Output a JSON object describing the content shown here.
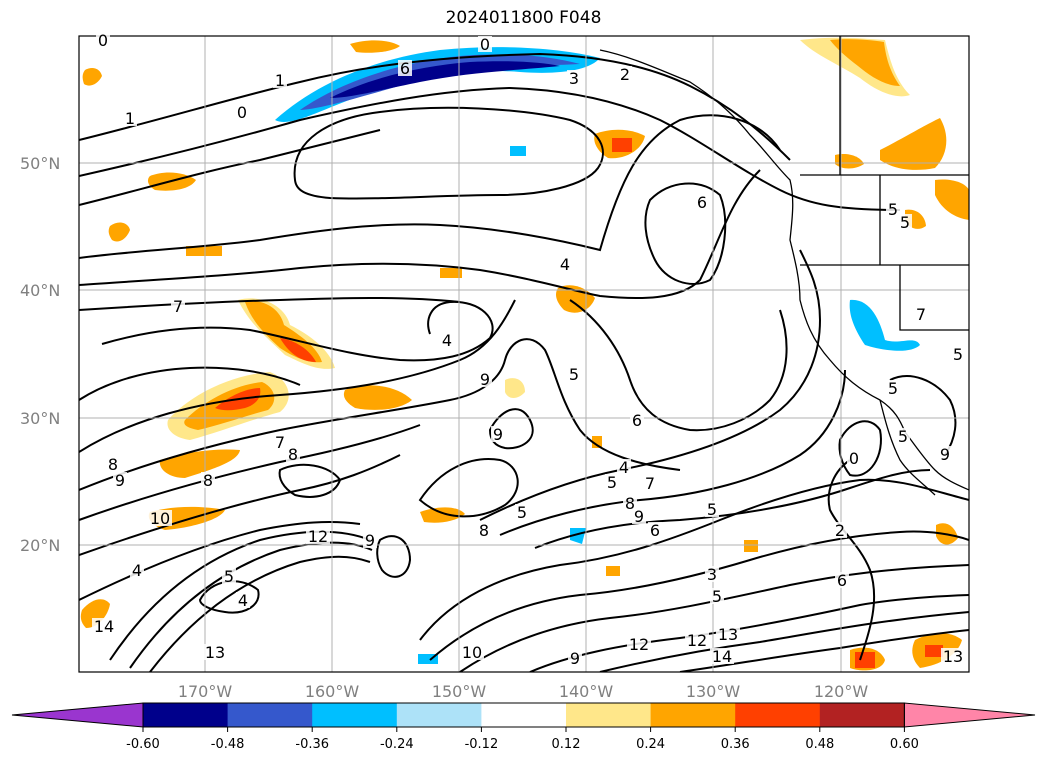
{
  "title": "2024011800 F048",
  "lat_labels": [
    "50°N",
    "40°N",
    "30°N",
    "20°N"
  ],
  "lon_labels": [
    "170°W",
    "160°W",
    "150°W",
    "140°W",
    "130°W",
    "120°W"
  ],
  "colorbar": {
    "colors": [
      "#9a35cf",
      "#00008b",
      "#3558cc",
      "#00bfff",
      "#ade2f8",
      "#ffffff",
      "#ffe78a",
      "#ffa500",
      "#ff4000",
      "#b22222",
      "#ff85a8"
    ],
    "tick_labels": [
      "-0.60",
      "-0.48",
      "-0.36",
      "-0.24",
      "-0.12",
      "0.12",
      "0.24",
      "0.36",
      "0.48",
      "0.60"
    ]
  },
  "contour_labels": [
    "0",
    "0",
    "1",
    "1",
    "0",
    "2",
    "3",
    "6",
    "6",
    "4",
    "4",
    "9",
    "5",
    "9",
    "6",
    "7",
    "7",
    "8",
    "8",
    "9",
    "8",
    "10",
    "12",
    "4",
    "5",
    "8",
    "5",
    "9",
    "5",
    "4",
    "6",
    "8",
    "7",
    "5",
    "9",
    "2",
    "6",
    "3",
    "5",
    "13",
    "12",
    "14",
    "10",
    "9",
    "14",
    "13",
    "4",
    "13",
    "12",
    "5",
    "5",
    "5",
    "7",
    "0",
    "9",
    "5",
    "5"
  ]
}
